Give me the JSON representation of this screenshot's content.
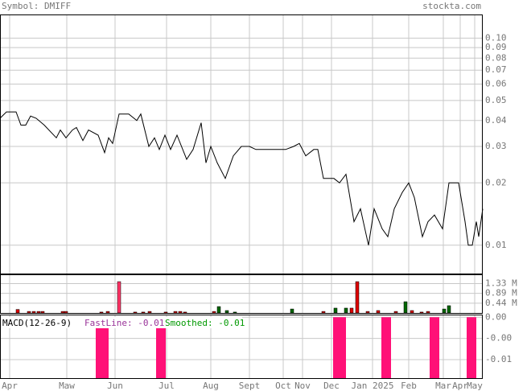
{
  "header": {
    "symbol": "Symbol: DMIFF",
    "site": "stockta.com"
  },
  "chart_data": [
    {
      "type": "line",
      "color": "#000000",
      "ylog": true,
      "grid": true,
      "xlim": [
        0,
        300
      ],
      "xticks": [
        {
          "value": 6,
          "label": "Apr"
        },
        {
          "value": 41.5,
          "label": "Maw"
        },
        {
          "value": 71.5,
          "label": "Jun"
        },
        {
          "value": 103.5,
          "label": "Jul"
        },
        {
          "value": 131,
          "label": "Aug"
        },
        {
          "value": 155,
          "label": "Sept"
        },
        {
          "value": 176,
          "label": "Oct"
        },
        {
          "value": 188,
          "label": "Nov"
        },
        {
          "value": 206,
          "label": "Dec"
        },
        {
          "value": 231.5,
          "label": "Jan 2025"
        },
        {
          "value": 254,
          "label": "Feb"
        },
        {
          "value": 275.5,
          "label": "Mar"
        },
        {
          "value": 286,
          "label": "Apr"
        },
        {
          "value": 295,
          "label": "May"
        }
      ],
      "ylim": [
        0.0073,
        0.13
      ],
      "yticks": [
        {
          "value": 0.1,
          "label": "0.10"
        },
        0.09,
        0.08,
        0.07,
        0.06,
        0.05,
        0.04,
        0.03,
        0.02,
        0.01
      ],
      "x": [
        0,
        4,
        10,
        13,
        16,
        19,
        22.5,
        27.5,
        35,
        37.5,
        41,
        45,
        47.5,
        51.5,
        55,
        61,
        65,
        67.5,
        70,
        74,
        80,
        85,
        87.5,
        92.5,
        96,
        99,
        102.5,
        106,
        110,
        116,
        120,
        125,
        128,
        131,
        135,
        140,
        145,
        150,
        155,
        159,
        164,
        167.5,
        172.5,
        177.5,
        182.5,
        186,
        190,
        195,
        197.5,
        201,
        207.5,
        211,
        215,
        220,
        224,
        229,
        232.5,
        237.5,
        241,
        245,
        250,
        254,
        257.5,
        262.5,
        266,
        270,
        275,
        279,
        285,
        289,
        291,
        293.5,
        296,
        297.5,
        300
      ],
      "values": [
        0.041,
        0.044,
        0.044,
        0.038,
        0.038,
        0.042,
        0.041,
        0.038,
        0.033,
        0.036,
        0.033,
        0.036,
        0.037,
        0.032,
        0.036,
        0.034,
        0.028,
        0.033,
        0.031,
        0.043,
        0.043,
        0.04,
        0.043,
        0.03,
        0.033,
        0.029,
        0.034,
        0.029,
        0.034,
        0.026,
        0.029,
        0.039,
        0.025,
        0.03,
        0.025,
        0.021,
        0.027,
        0.03,
        0.03,
        0.029,
        0.029,
        0.029,
        0.029,
        0.029,
        0.03,
        0.031,
        0.027,
        0.029,
        0.029,
        0.021,
        0.021,
        0.02,
        0.022,
        0.013,
        0.015,
        0.01,
        0.015,
        0.012,
        0.011,
        0.015,
        0.018,
        0.02,
        0.017,
        0.011,
        0.013,
        0.014,
        0.012,
        0.02,
        0.02,
        0.013,
        0.01,
        0.01,
        0.013,
        0.011,
        0.015
      ]
    },
    {
      "type": "bar",
      "ylim": [
        0,
        1.75
      ],
      "yticks": [
        {
          "value": 1.33,
          "label": "1.33 M"
        },
        {
          "value": 0.89,
          "label": "0.89 M"
        },
        {
          "value": 0.44,
          "label": "0.44 M"
        }
      ],
      "x": [
        11,
        18,
        21,
        24,
        26.5,
        39,
        41,
        63,
        67,
        74,
        84,
        89,
        93,
        103,
        109,
        112,
        115,
        133,
        136,
        141,
        146,
        181.5,
        201,
        208.5,
        215,
        218.5,
        222,
        228.5,
        235,
        246,
        252,
        256,
        262,
        266,
        276,
        279
      ],
      "values": [
        0.16,
        0.07,
        0.07,
        0.07,
        0.07,
        0.07,
        0.07,
        0.04,
        0.07,
        1.42,
        0.04,
        0.04,
        0.07,
        0.04,
        0.07,
        0.07,
        0.04,
        0.07,
        0.29,
        0.11,
        0.04,
        0.18,
        0.07,
        0.22,
        0.22,
        0.22,
        1.42,
        0.07,
        0.11,
        0.07,
        0.51,
        0.11,
        0.04,
        0.07,
        0.18,
        0.33
      ],
      "colors": [
        "#dd0000",
        "#dd0000",
        "#dd0000",
        "#dd0000",
        "#dd0000",
        "#dd0000",
        "#dd0000",
        "#dd0000",
        "#dd0000",
        "#ff3366",
        "#dd0000",
        "#dd0000",
        "#dd0000",
        "#dd0000",
        "#dd0000",
        "#dd0000",
        "#dd0000",
        "#dd0000",
        "#006600",
        "#006600",
        "#006600",
        "#006600",
        "#dd0000",
        "#006600",
        "#006600",
        "#dd0000",
        "#dd0000",
        "#dd0000",
        "#dd0000",
        "#dd0000",
        "#006600",
        "#dd0000",
        "#dd0000",
        "#dd0000",
        "#006600",
        "#006600"
      ]
    },
    {
      "type": "histogram",
      "color": "#ff1177",
      "label": "MACD(12-26-9)",
      "fast_label": "FastLine: -0.01",
      "smooth_label": "Smoothed: -0.01",
      "ylim": [
        -0.0115,
        0.0005
      ],
      "yticks": [
        {
          "value": 0,
          "label": "0.00"
        },
        {
          "value": -0.004,
          "label": "-0.00"
        },
        {
          "value": -0.008,
          "label": "-0.01"
        }
      ],
      "x": [
        60.5,
        62.5,
        64.5,
        66.5,
        98,
        100,
        102,
        208,
        210,
        212,
        214,
        238,
        240,
        242,
        268,
        270,
        272,
        291,
        293,
        295
      ],
      "values": [
        -0.0115,
        -0.0115,
        -0.0115,
        -0.0115,
        -0.0115,
        -0.0115,
        -0.0115,
        -0.0115,
        -0.0115,
        -0.0115,
        -0.0115,
        -0.0115,
        -0.0115,
        -0.0115,
        -0.0115,
        -0.0115,
        -0.0115,
        -0.0115,
        -0.0115,
        -0.0115
      ]
    }
  ]
}
